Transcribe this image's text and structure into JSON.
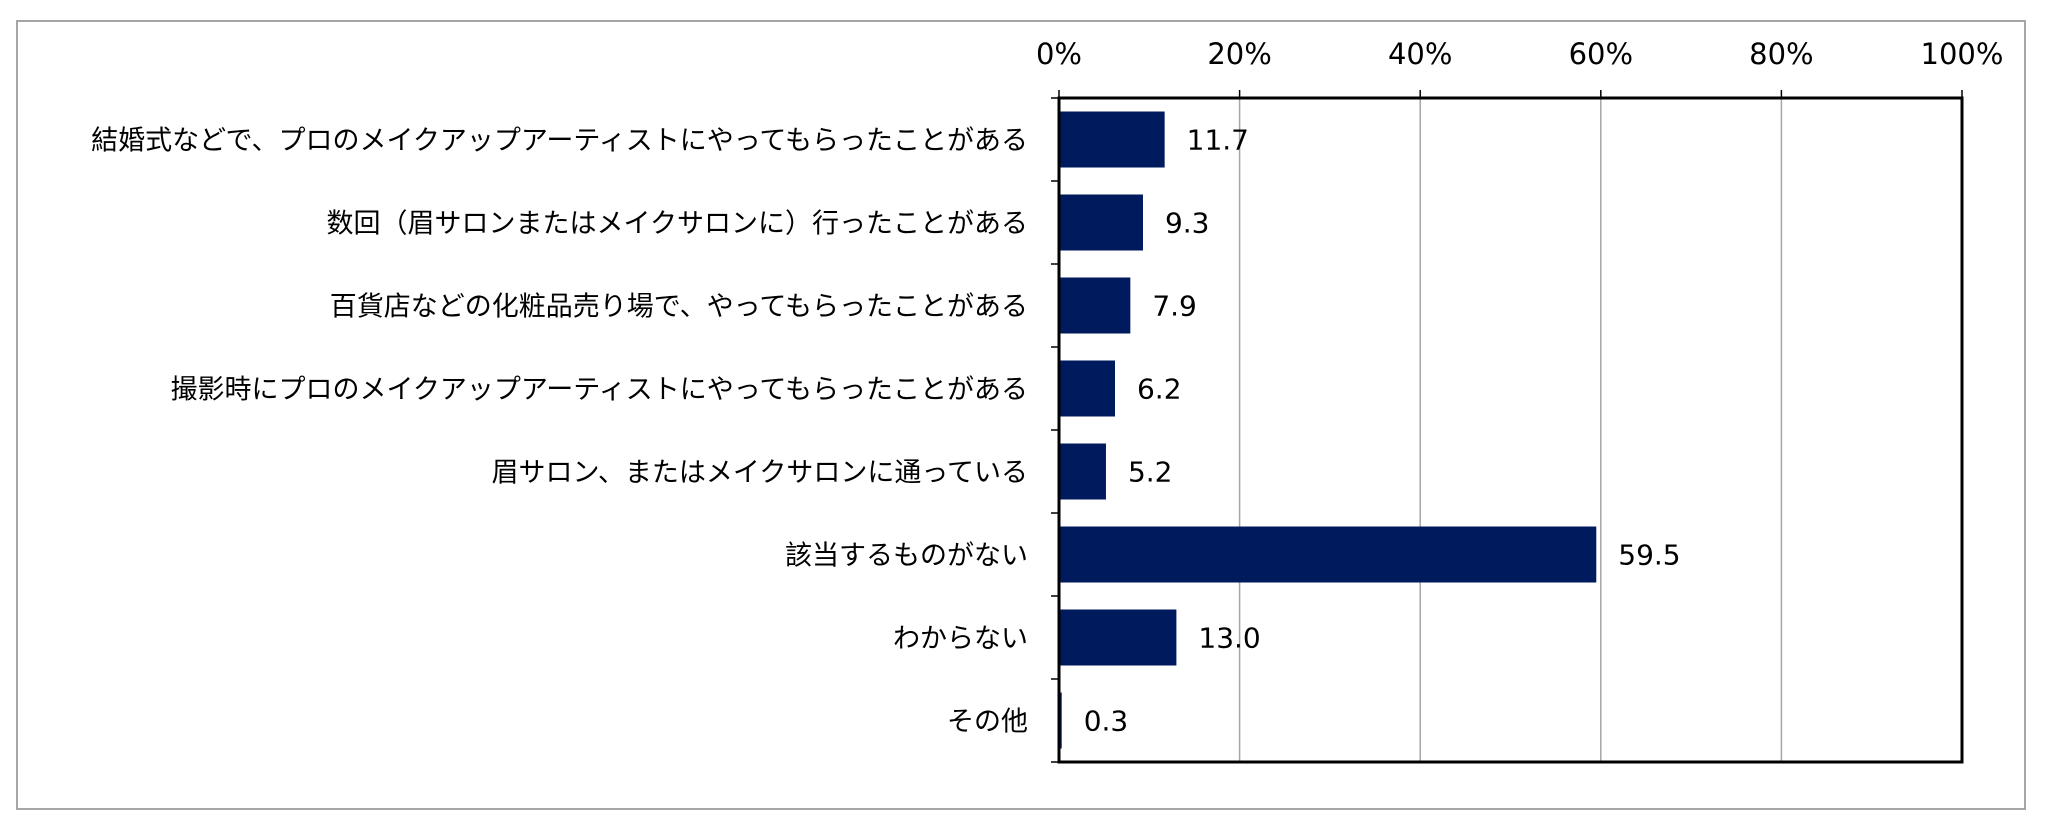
{
  "chart_data": {
    "type": "bar",
    "orientation": "horizontal",
    "categories": [
      "結婚式などで、プロのメイクアップアーティストにやってもらったことがある",
      "数回（眉サロンまたはメイクサロンに）行ったことがある",
      "百貨店などの化粧品売り場で、やってもらったことがある",
      "撮影時にプロのメイクアップアーティストにやってもらったことがある",
      "眉サロン、またはメイクサロンに通っている",
      "該当するものがない",
      "わからない",
      "その他"
    ],
    "values": [
      11.7,
      9.3,
      7.9,
      6.2,
      5.2,
      59.5,
      13.0,
      0.3
    ],
    "value_labels": [
      "11.7",
      "9.3",
      "7.9",
      "6.2",
      "5.2",
      "59.5",
      "13.0",
      "0.3"
    ],
    "xlim": [
      0,
      100
    ],
    "xticks": [
      0,
      20,
      40,
      60,
      80,
      100
    ],
    "xtick_labels": [
      "0%",
      "20%",
      "40%",
      "60%",
      "80%",
      "100%"
    ],
    "x_axis_position": "top",
    "grid": true,
    "bar_color": "#001a5e",
    "grid_color": "#a6a6a6",
    "axis_color": "#000000"
  }
}
